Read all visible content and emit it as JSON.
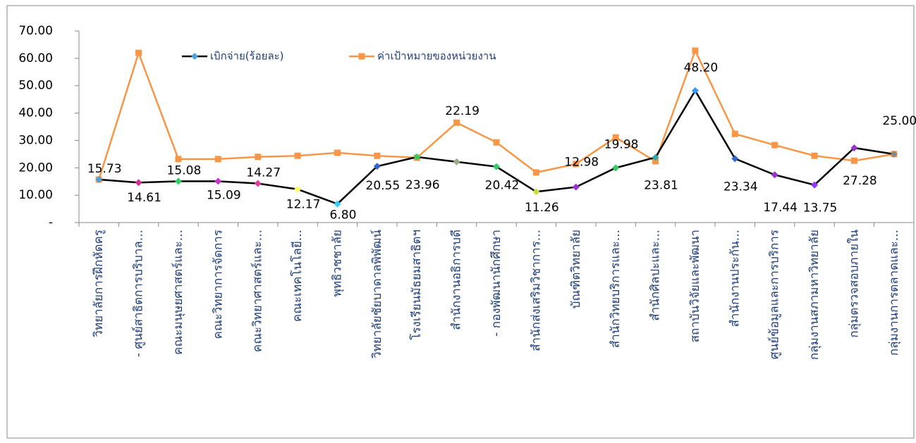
{
  "chart_data": {
    "type": "line",
    "categories": [
      "วิทยาลัยการฝึกหัดครู",
      "- ศูนย์สาธิตการบริบาล...",
      "คณะมนุษยศาสตร์และ...",
      "คณะวิทยาการจัดการ",
      "คณะวิทยาศาสตร์และ...",
      "คณะเทคโนโลยี...",
      "พุทธิวชชาลัย",
      "วิทยาลัยชัยบาดาลพิพัฒน์",
      "โรงเรียนมัธยมสาธิตฯ",
      "สำนักงานอธิการบดี",
      "- กองพัฒนานักศึกษา",
      "สำนักส่งเสริมวิชาการ...",
      "บัณฑิตวิทยาลัย",
      "สำนักวิทยบริการและ...",
      "สำนักศิลปะและ...",
      "สถาบันวิจัยและพัฒนา",
      "สำนักงานประกัน...",
      "ศูนย์ข้อมูลและการบริการ",
      "กลุ่มงานสภามหาวิทยาลัย",
      "กลุ่มตรวจสอบภายใน",
      "กลุ่มงานการตลาดและ..."
    ],
    "series": [
      {
        "name": "เบิกจ่าย(ร้อยละ)",
        "color": "#000000",
        "marker_colors": [
          "#4f9fd8",
          "#d0309a",
          "#33cc66",
          "#cc33cc",
          "#e0409a",
          "#ffff66",
          "#33ccff",
          "#3366cc",
          "#33cc66",
          "#99aa88",
          "#33cc66",
          "#ccdd44",
          "#9933cc",
          "#33cc66",
          "#33aaaa",
          "#3399ff",
          "#3366cc",
          "#9933cc",
          "#9933ff",
          "#9933cc",
          "#888888"
        ],
        "values": [
          15.73,
          14.61,
          15.08,
          15.09,
          14.27,
          12.17,
          6.8,
          20.55,
          23.96,
          22.19,
          20.42,
          11.26,
          12.98,
          19.98,
          23.81,
          48.2,
          23.34,
          17.44,
          13.75,
          27.28,
          25.0
        ],
        "value_labels": [
          "15.73",
          "14.61",
          "15.08",
          "15.09",
          "14.27",
          "12.17",
          "6.80",
          "20.55",
          "23.96",
          "22.19",
          "20.42",
          "11.26",
          "12.98",
          "19.98",
          "23.81",
          "48.20",
          "23.34",
          "17.44",
          "13.75",
          "27.28",
          "25.00"
        ]
      },
      {
        "name": "ค่าเป้าหมายของหน่วยงาน",
        "color": "#f79646",
        "values": [
          15.7,
          62,
          23.2,
          23.2,
          24,
          24.4,
          25.5,
          24.4,
          23.7,
          36.5,
          29.3,
          18.3,
          21.4,
          31.1,
          22.4,
          62.8,
          32.4,
          28.3,
          24.4,
          22.6,
          25
        ]
      }
    ],
    "ylim": [
      0,
      70
    ],
    "yticks": [
      {
        "value": 0,
        "label": "-"
      },
      {
        "value": 10,
        "label": "10.00"
      },
      {
        "value": 20,
        "label": "20.00"
      },
      {
        "value": 30,
        "label": "30.00"
      },
      {
        "value": 40,
        "label": "40.00"
      },
      {
        "value": 50,
        "label": "50.00"
      },
      {
        "value": 60,
        "label": "60.00"
      },
      {
        "value": 70,
        "label": "70.00"
      }
    ],
    "legend": "top"
  }
}
